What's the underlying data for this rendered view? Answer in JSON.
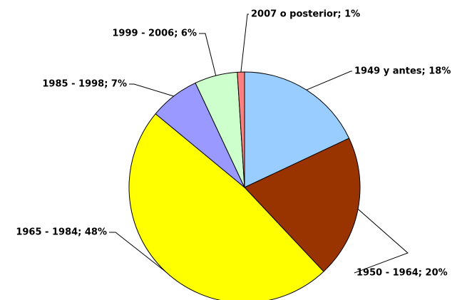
{
  "chart_data": {
    "type": "pie",
    "categories": [
      "1949 y antes; 18%",
      "1950 - 1964; 20%",
      "1965 - 1984; 48%",
      "1985 - 1998; 7%",
      "1999 - 2006; 6%",
      "2007 o posterior; 1%"
    ],
    "values": [
      18,
      20,
      48,
      7,
      6,
      1
    ],
    "colors": [
      "#99ccff",
      "#993300",
      "#ffff00",
      "#9999ff",
      "#ccffcc",
      "#ff8080"
    ]
  }
}
